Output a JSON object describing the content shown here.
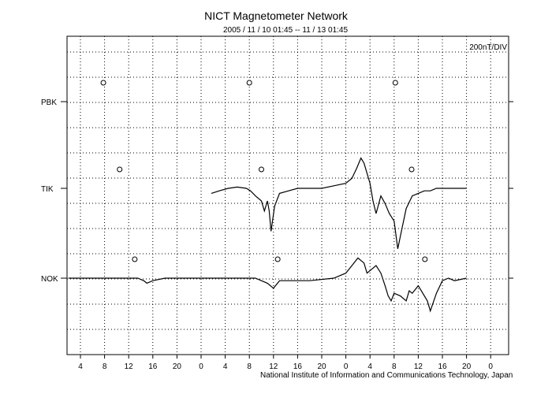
{
  "chart_data": {
    "type": "line",
    "title": "NICT Magnetometer Network",
    "subtitle": "2005 / 11 / 10   01:45 -- 11 / 13   01:45",
    "scale_label": "200nT/DIV",
    "credit": "National Institute of Information and Communications Technology, Japan",
    "x_tick_labels": [
      "4",
      "8",
      "12",
      "16",
      "20",
      "0",
      "4",
      "8",
      "12",
      "16",
      "20",
      "0",
      "4",
      "8",
      "12",
      "16",
      "20",
      "0"
    ],
    "x_range_hours": [
      0,
      72
    ],
    "grid": true,
    "stations": [
      {
        "name": "PBK",
        "midnight_markers_h": [
          5.8,
          30.0,
          54.2
        ],
        "values": []
      },
      {
        "name": "TIK",
        "midnight_markers_h": [
          8.5,
          32.0,
          56.9
        ],
        "values": [
          [
            23.7,
            -0.2
          ],
          [
            25.0,
            -0.1
          ],
          [
            26.5,
            0
          ],
          [
            28.0,
            0.05
          ],
          [
            29.5,
            0
          ],
          [
            30.2,
            -0.1
          ],
          [
            31.0,
            -0.3
          ],
          [
            32.0,
            -0.5
          ],
          [
            32.5,
            -0.9
          ],
          [
            33.0,
            -0.5
          ],
          [
            33.3,
            -0.9
          ],
          [
            33.6,
            -1.7
          ],
          [
            34.2,
            -0.7
          ],
          [
            35.0,
            -0.2
          ],
          [
            36.5,
            -0.1
          ],
          [
            38.0,
            0
          ],
          [
            40.0,
            0
          ],
          [
            42.0,
            0
          ],
          [
            44.0,
            0.1
          ],
          [
            46.0,
            0.2
          ],
          [
            47.0,
            0.4
          ],
          [
            47.8,
            0.8
          ],
          [
            48.5,
            1.2
          ],
          [
            49.0,
            1.0
          ],
          [
            49.5,
            0.6
          ],
          [
            50.0,
            0.2
          ],
          [
            50.5,
            -0.5
          ],
          [
            51.0,
            -1.0
          ],
          [
            51.8,
            -0.3
          ],
          [
            52.5,
            -0.6
          ],
          [
            53.2,
            -1.0
          ],
          [
            54.0,
            -1.3
          ],
          [
            54.6,
            -2.4
          ],
          [
            55.3,
            -1.6
          ],
          [
            56.0,
            -0.8
          ],
          [
            57.0,
            -0.3
          ],
          [
            58.0,
            -0.2
          ],
          [
            59.0,
            -0.1
          ],
          [
            60.0,
            -0.1
          ],
          [
            61.0,
            0
          ],
          [
            62.0,
            0
          ],
          [
            63.0,
            0
          ],
          [
            64.0,
            0
          ],
          [
            65.0,
            0
          ],
          [
            66.0,
            0
          ]
        ]
      },
      {
        "name": "NOK",
        "midnight_markers_h": [
          11.0,
          34.7,
          59.1
        ],
        "values": [
          [
            0,
            0
          ],
          [
            6.0,
            0
          ],
          [
            11.5,
            0
          ],
          [
            12.5,
            -0.1
          ],
          [
            13.0,
            -0.2
          ],
          [
            14.0,
            -0.1
          ],
          [
            16.0,
            0
          ],
          [
            18.0,
            0
          ],
          [
            20.0,
            0
          ],
          [
            24.0,
            0
          ],
          [
            28.0,
            0
          ],
          [
            31.0,
            0
          ],
          [
            33.0,
            -0.2
          ],
          [
            34.0,
            -0.4
          ],
          [
            35.0,
            -0.1
          ],
          [
            36.0,
            -0.1
          ],
          [
            40.0,
            -0.1
          ],
          [
            44.0,
            0
          ],
          [
            46.0,
            0.2
          ],
          [
            47.0,
            0.5
          ],
          [
            48.0,
            0.8
          ],
          [
            49.0,
            0.6
          ],
          [
            49.5,
            0.2
          ],
          [
            50.0,
            0.3
          ],
          [
            51.0,
            0.5
          ],
          [
            51.8,
            0.2
          ],
          [
            52.5,
            -0.3
          ],
          [
            53.0,
            -0.7
          ],
          [
            53.5,
            -0.9
          ],
          [
            54.0,
            -0.6
          ],
          [
            55.0,
            -0.7
          ],
          [
            56.0,
            -0.9
          ],
          [
            56.5,
            -0.5
          ],
          [
            57.0,
            -0.6
          ],
          [
            58.0,
            -0.3
          ],
          [
            59.5,
            -0.9
          ],
          [
            60.0,
            -1.3
          ],
          [
            61.0,
            -0.6
          ],
          [
            62.0,
            -0.1
          ],
          [
            63.0,
            0
          ],
          [
            64.0,
            -0.1
          ],
          [
            66.0,
            0
          ]
        ]
      }
    ]
  }
}
